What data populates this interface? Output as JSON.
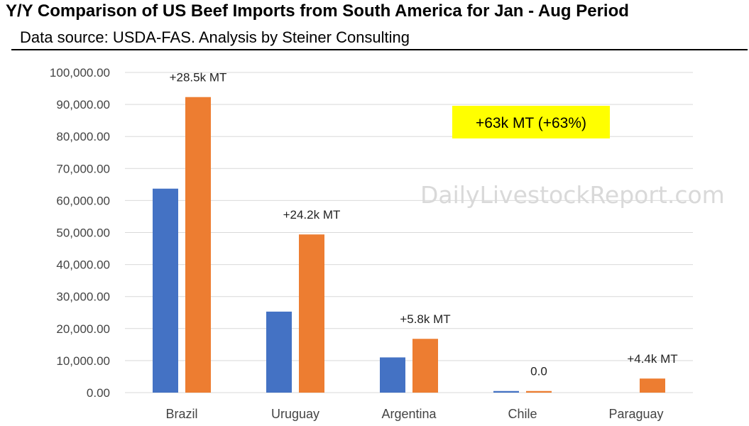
{
  "title": "Y/Y Comparison of US Beef Imports from South America for Jan - Aug Period",
  "subtitle": "Data source: USDA-FAS.   Analysis by Steiner Consulting",
  "watermark": "DailyLivestockReport.com",
  "callout": "+63k MT (+63%)",
  "colors": {
    "series_prior": "#4472c4",
    "series_current": "#ed7d31",
    "callout_bg": "#ffff00",
    "grid": "#d9d9d9"
  },
  "chart_data": {
    "type": "bar",
    "title": "",
    "xlabel": "",
    "ylabel": "",
    "ylim": [
      0,
      100000
    ],
    "y_ticks": [
      "100,000.00",
      "90,000.00",
      "80,000.00",
      "70,000.00",
      "60,000.00",
      "50,000.00",
      "40,000.00",
      "30,000.00",
      "20,000.00",
      "10,000.00",
      "0.00"
    ],
    "categories": [
      "Brazil",
      "Uruguay",
      "Argentina",
      "Chile",
      "Paraguay"
    ],
    "series": [
      {
        "values": [
          63700,
          25300,
          11000,
          500,
          0
        ]
      },
      {
        "values": [
          92300,
          49400,
          16800,
          500,
          4400
        ]
      }
    ],
    "annotations": [
      "+28.5k MT",
      "+24.2k MT",
      "+5.8k MT",
      "0.0",
      "+4.4k MT"
    ],
    "grid": true,
    "legend": "none"
  }
}
